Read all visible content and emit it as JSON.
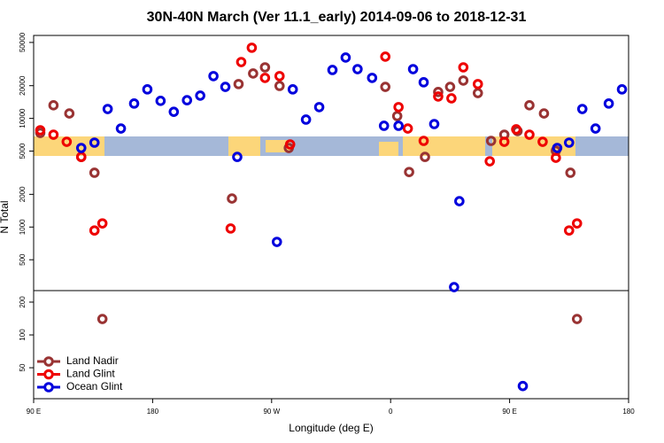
{
  "chart_data": [
    {
      "type": "scatter",
      "title": "30N-40N March (Ver 11.1_early)   2014-09-06 to 2018-12-31",
      "ylabel": "N Total",
      "log": true,
      "xlim": [
        90,
        540
      ],
      "ylim": [
        260,
        58000
      ],
      "yticks": [
        500,
        1000,
        2000,
        5000,
        10000,
        20000,
        50000
      ],
      "legend": "bottom-left",
      "series": [
        {
          "name": "Land Nadir",
          "color": "#993333",
          "x": [
            95,
            105,
            117,
            126,
            136,
            245,
            256,
            265,
            276,
            283,
            240,
            356,
            365,
            374,
            386,
            396,
            405,
            415,
            426,
            436,
            446,
            456,
            465,
            476,
            485,
            496
          ],
          "values": [
            7350,
            13200,
            11100,
            4420,
            3160,
            20700,
            25900,
            29500,
            19900,
            5340,
            1830,
            19500,
            10500,
            3210,
            4420,
            17500,
            19500,
            22300,
            17100,
            6210,
            7080,
            7640,
            13200,
            11100,
            5040,
            3160
          ]
        },
        {
          "name": "Land Glint",
          "color": "#ee0000",
          "x": [
            95,
            105,
            115,
            126,
            136,
            142,
            239,
            247,
            255,
            265,
            276,
            284,
            356,
            366,
            373,
            385,
            396,
            406,
            415,
            426,
            435,
            446,
            455,
            465,
            475,
            485,
            495,
            501
          ],
          "values": [
            7780,
            7080,
            6090,
            4420,
            930,
            1080,
            970,
            33000,
            44700,
            23600,
            24500,
            5760,
            37000,
            12700,
            8070,
            6210,
            15900,
            15300,
            29500,
            20700,
            4030,
            6090,
            7930,
            7080,
            6090,
            4340,
            930,
            1080
          ]
        },
        {
          "name": "Ocean Glint",
          "color": "#0000dd",
          "x": [
            126,
            136,
            146,
            156,
            166,
            176,
            186,
            196,
            206,
            216,
            226,
            235,
            244,
            274,
            286,
            296,
            306,
            316,
            326,
            335,
            346,
            355,
            366,
            377,
            385,
            393,
            408,
            412,
            486,
            495,
            505,
            515,
            525,
            535
          ],
          "values": [
            5340,
            5980,
            12200,
            8070,
            13700,
            18500,
            14500,
            11500,
            14700,
            16200,
            24500,
            19500,
            4420,
            730,
            18500,
            9750,
            12700,
            27900,
            36300,
            28400,
            23600,
            8550,
            8550,
            28400,
            21500,
            8870,
            280,
            1730,
            5340,
            5980,
            12200,
            8070,
            13700,
            18500
          ]
        }
      ]
    },
    {
      "type": "scatter",
      "xlabel": "Longitude (deg E)",
      "log": true,
      "xlim": [
        90,
        540
      ],
      "ylim": [
        26,
        255
      ],
      "yticks": [
        50,
        100,
        200
      ],
      "xticks": [
        {
          "value": 90,
          "label": "90 E"
        },
        {
          "value": 180,
          "label": "180"
        },
        {
          "value": 270,
          "label": "90 W"
        },
        {
          "value": 360,
          "label": "0"
        },
        {
          "value": 450,
          "label": "90 E"
        },
        {
          "value": 540,
          "label": "180"
        }
      ],
      "series": [
        {
          "color": "#993333",
          "x": [
            142,
            501
          ],
          "values": [
            140,
            140
          ]
        },
        {
          "color": "#ee0000",
          "x": [],
          "values": []
        },
        {
          "color": "#0000dd",
          "x": [
            460
          ],
          "values": [
            34
          ]
        }
      ]
    }
  ]
}
